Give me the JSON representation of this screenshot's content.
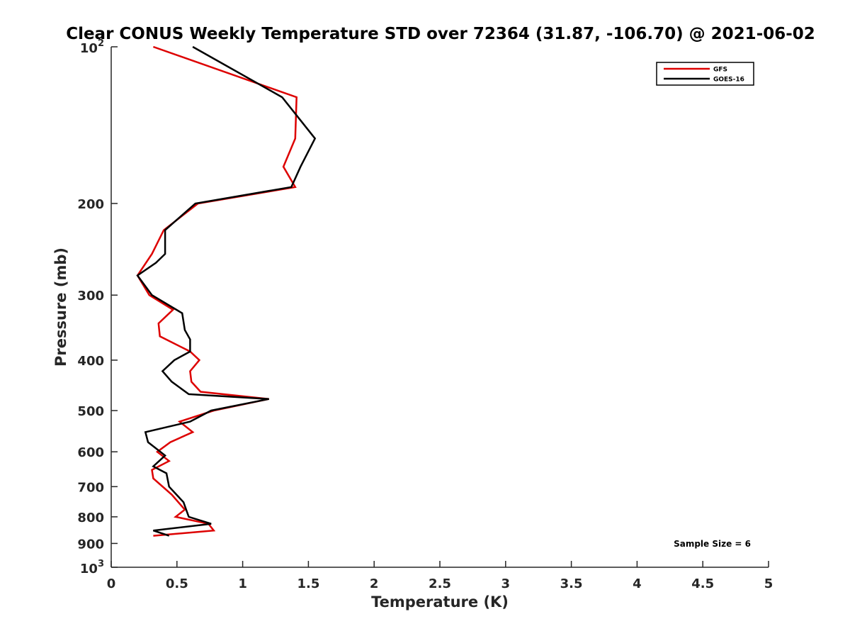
{
  "chart_data": {
    "type": "line",
    "title": "Clear CONUS Weekly Temperature STD over 72364 (31.87, -106.70) @ 2021-06-02",
    "xlabel": "Temperature (K)",
    "ylabel": "Pressure (mb)",
    "xlim": [
      0,
      5
    ],
    "ylim": [
      100,
      1000
    ],
    "y_scale": "log",
    "y_reversed": true,
    "x_ticks": [
      0,
      0.5,
      1,
      1.5,
      2,
      2.5,
      3,
      3.5,
      4,
      4.5,
      5
    ],
    "x_tick_labels": [
      "0",
      "0.5",
      "1",
      "1.5",
      "2",
      "2.5",
      "3",
      "3.5",
      "4",
      "4.5",
      "5"
    ],
    "y_ticks": [
      {
        "value": 100,
        "base": "10",
        "exp": "2"
      },
      {
        "value": 200,
        "label": "200"
      },
      {
        "value": 300,
        "label": "300"
      },
      {
        "value": 400,
        "label": "400"
      },
      {
        "value": 500,
        "label": "500"
      },
      {
        "value": 600,
        "label": "600"
      },
      {
        "value": 700,
        "label": "700"
      },
      {
        "value": 800,
        "label": "800"
      },
      {
        "value": 900,
        "label": "900"
      },
      {
        "value": 1000,
        "base": "10",
        "exp": "3"
      }
    ],
    "grid": false,
    "legend_position": "top-right",
    "series": [
      {
        "name": "GFS",
        "color": "#dd0000",
        "points": [
          [
            0.32,
            100
          ],
          [
            1.41,
            125
          ],
          [
            1.4,
            150
          ],
          [
            1.31,
            170
          ],
          [
            1.4,
            186
          ],
          [
            0.66,
            200
          ],
          [
            0.4,
            225
          ],
          [
            0.31,
            250
          ],
          [
            0.2,
            275
          ],
          [
            0.29,
            300
          ],
          [
            0.47,
            320
          ],
          [
            0.36,
            340
          ],
          [
            0.37,
            360
          ],
          [
            0.6,
            385
          ],
          [
            0.67,
            400
          ],
          [
            0.6,
            420
          ],
          [
            0.61,
            440
          ],
          [
            0.68,
            460
          ],
          [
            1.2,
            475
          ],
          [
            0.78,
            500
          ],
          [
            0.52,
            525
          ],
          [
            0.62,
            550
          ],
          [
            0.45,
            575
          ],
          [
            0.35,
            600
          ],
          [
            0.44,
            625
          ],
          [
            0.31,
            650
          ],
          [
            0.32,
            675
          ],
          [
            0.46,
            725
          ],
          [
            0.56,
            775
          ],
          [
            0.49,
            800
          ],
          [
            0.74,
            825
          ],
          [
            0.78,
            850
          ],
          [
            0.32,
            870
          ]
        ]
      },
      {
        "name": "GOES-16",
        "color": "#000000",
        "points": [
          [
            0.62,
            100
          ],
          [
            1.3,
            125
          ],
          [
            1.55,
            150
          ],
          [
            1.44,
            170
          ],
          [
            1.37,
            186
          ],
          [
            0.64,
            200
          ],
          [
            0.41,
            225
          ],
          [
            0.41,
            250
          ],
          [
            0.34,
            260
          ],
          [
            0.2,
            275
          ],
          [
            0.31,
            300
          ],
          [
            0.54,
            325
          ],
          [
            0.56,
            350
          ],
          [
            0.6,
            365
          ],
          [
            0.6,
            385
          ],
          [
            0.48,
            400
          ],
          [
            0.39,
            420
          ],
          [
            0.46,
            440
          ],
          [
            0.59,
            465
          ],
          [
            1.2,
            475
          ],
          [
            0.76,
            500
          ],
          [
            0.6,
            525
          ],
          [
            0.26,
            550
          ],
          [
            0.28,
            575
          ],
          [
            0.41,
            610
          ],
          [
            0.32,
            640
          ],
          [
            0.42,
            660
          ],
          [
            0.44,
            700
          ],
          [
            0.55,
            750
          ],
          [
            0.57,
            775
          ],
          [
            0.59,
            800
          ],
          [
            0.76,
            825
          ],
          [
            0.32,
            850
          ],
          [
            0.44,
            870
          ]
        ]
      }
    ],
    "annotation": "Sample Size = 6"
  }
}
